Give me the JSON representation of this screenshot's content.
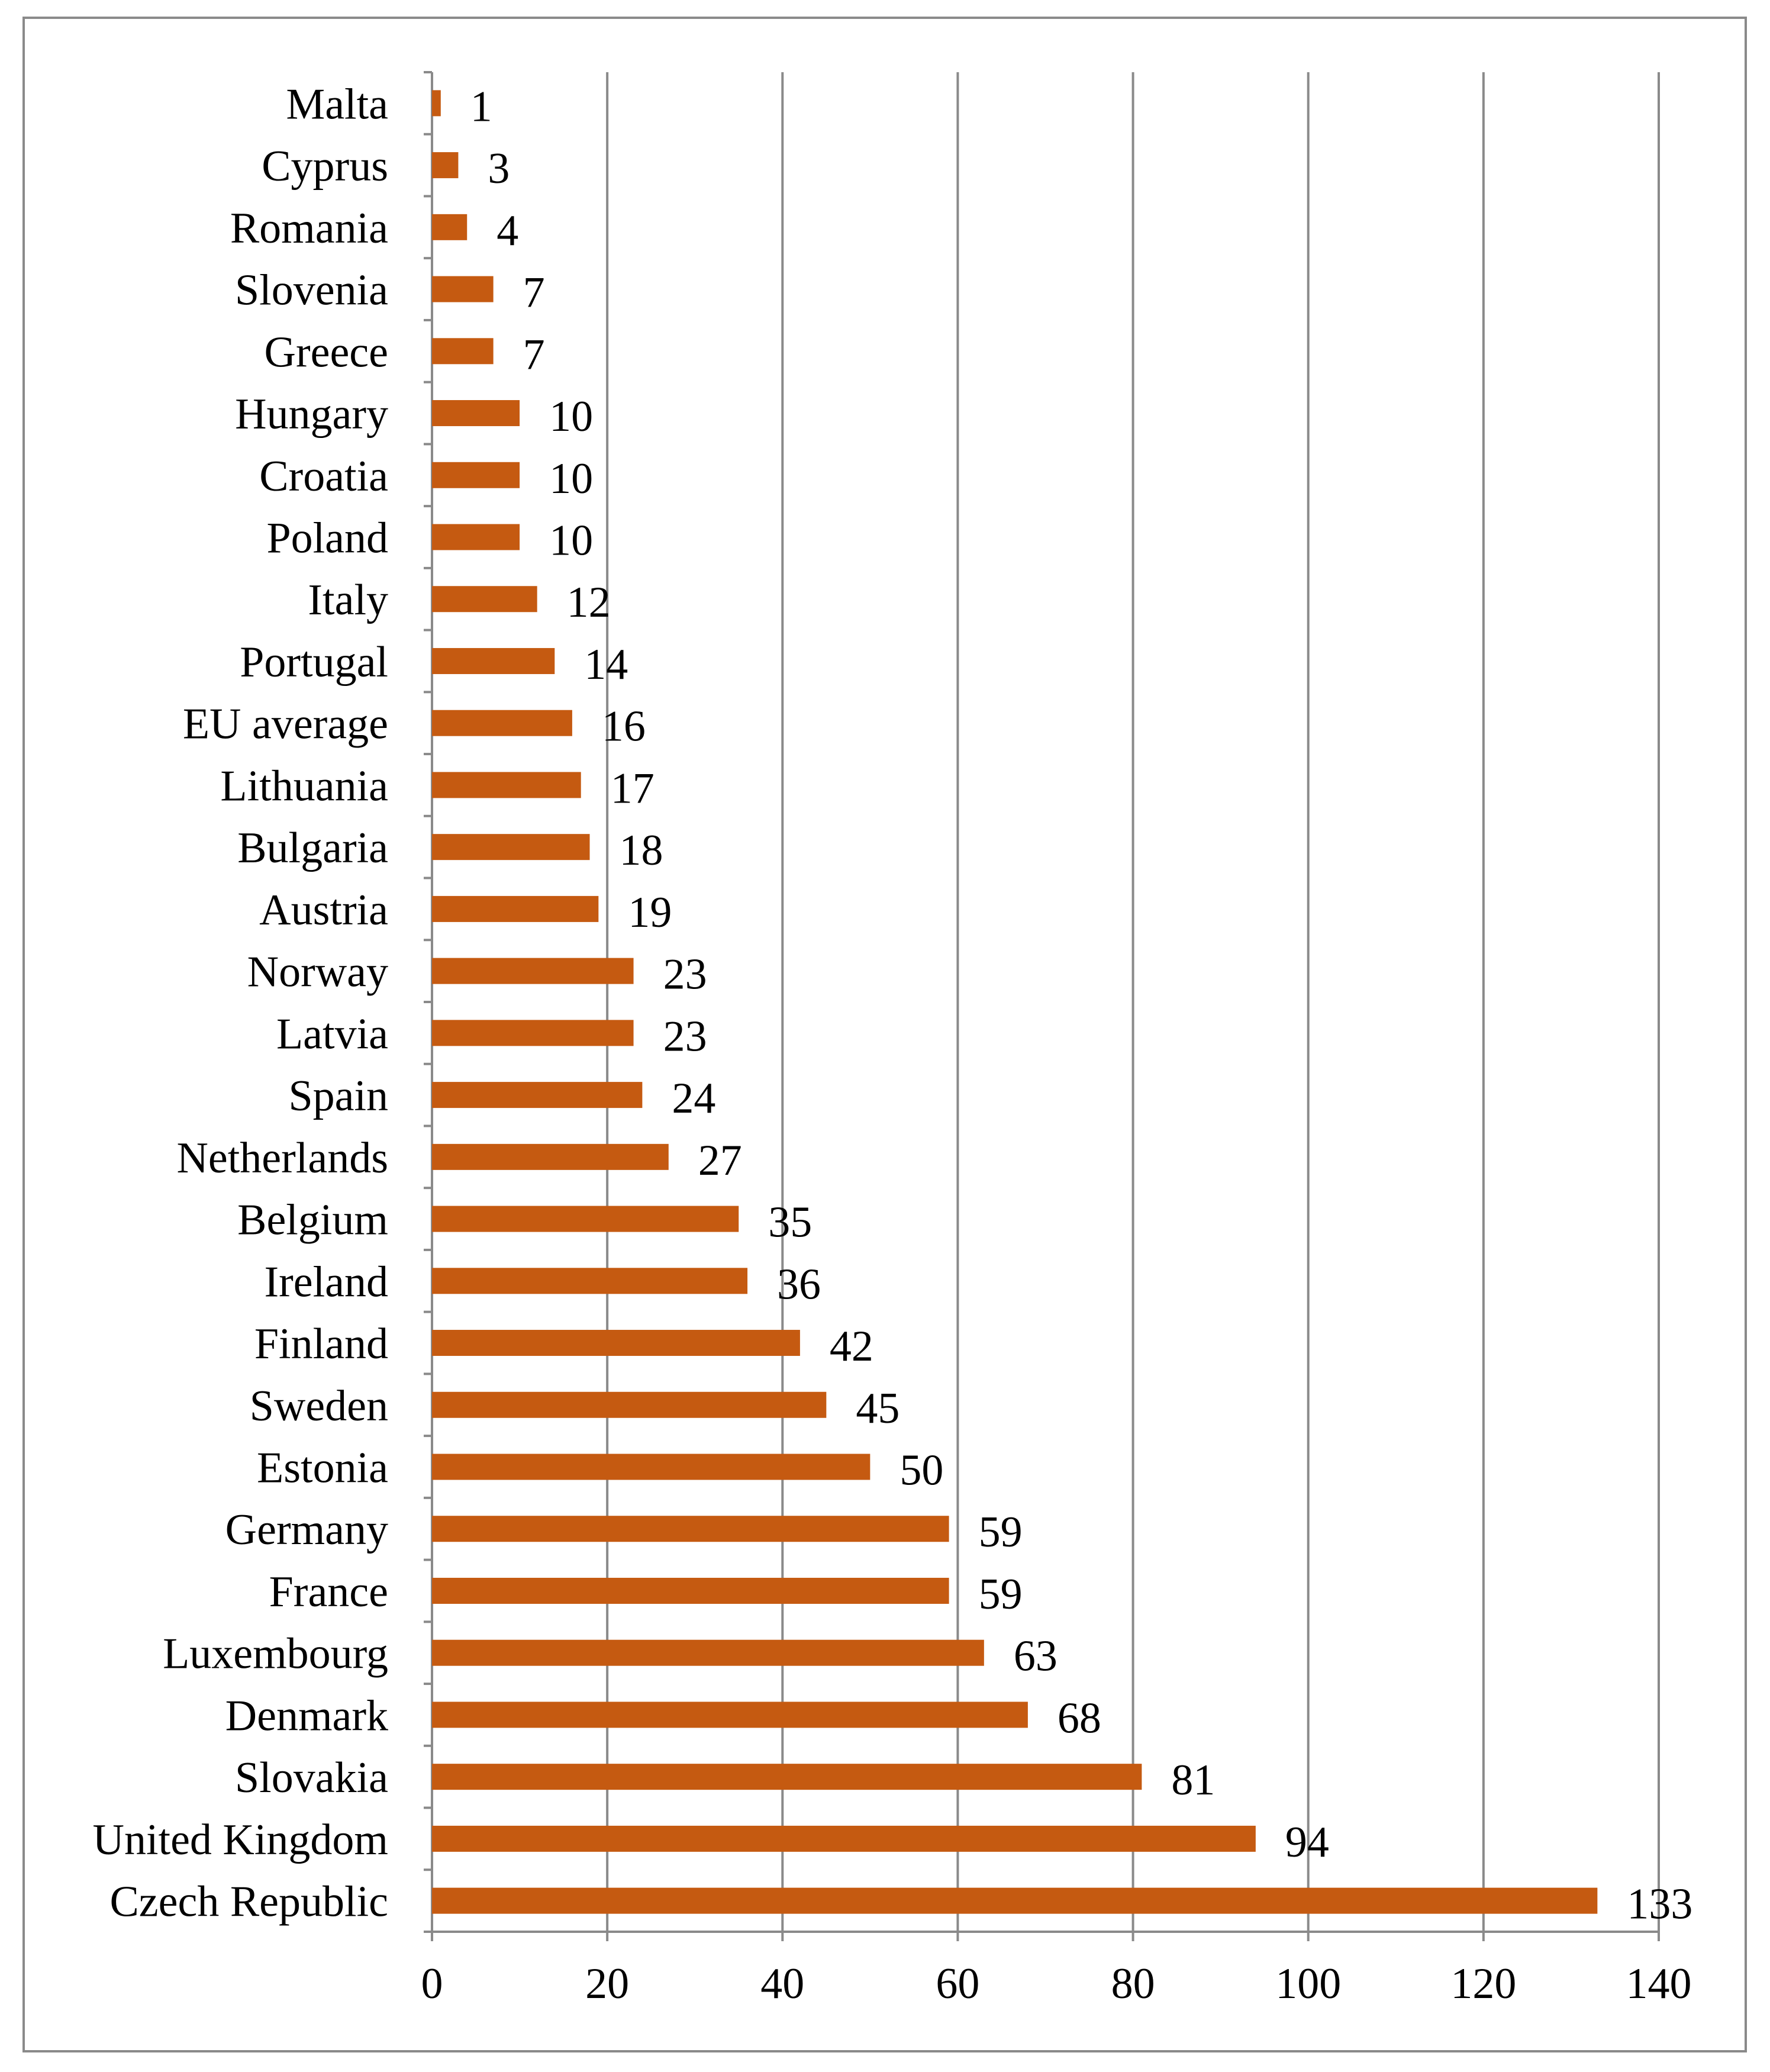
{
  "chart_data": {
    "type": "bar",
    "orientation": "horizontal",
    "title": "",
    "xlabel": "",
    "ylabel": "",
    "xlim": [
      0,
      140
    ],
    "x_ticks": [
      0,
      20,
      40,
      60,
      80,
      100,
      120,
      140
    ],
    "grid": "vertical",
    "data_labels": true,
    "bar_color": "#c55a11",
    "categories": [
      "Malta",
      "Cyprus",
      "Romania",
      "Slovenia",
      "Greece",
      "Hungary",
      "Croatia",
      "Poland",
      "Italy",
      "Portugal",
      "EU average",
      "Lithuania",
      "Bulgaria",
      "Austria",
      "Norway",
      "Latvia",
      "Spain",
      "Netherlands",
      "Belgium",
      "Ireland",
      "Finland",
      "Sweden",
      "Estonia",
      "Germany",
      "France",
      "Luxembourg",
      "Denmark",
      "Slovakia",
      "United Kingdom",
      "Czech Republic"
    ],
    "values": [
      1,
      3,
      4,
      7,
      7,
      10,
      10,
      10,
      12,
      14,
      16,
      17,
      18,
      19,
      23,
      23,
      24,
      27,
      35,
      36,
      42,
      45,
      50,
      59,
      59,
      63,
      68,
      81,
      94,
      133
    ]
  }
}
